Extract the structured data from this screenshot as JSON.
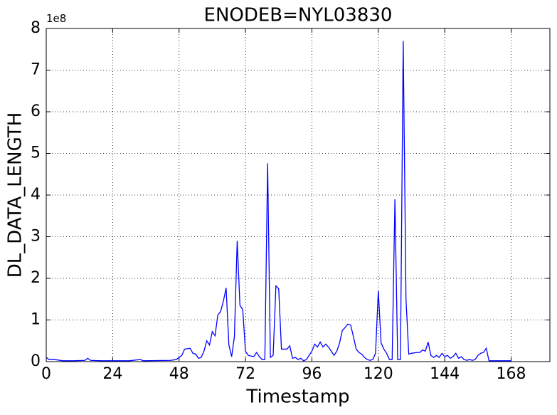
{
  "chart_data": {
    "type": "line",
    "title": "ENODEB=NYL03830",
    "x_label": "Timestamp",
    "y_label": "DL_DATA_LENGTH",
    "y_offset_label": "1e8",
    "xlim": [
      0,
      182
    ],
    "xticks": [
      0,
      24,
      48,
      72,
      96,
      120,
      144,
      168
    ],
    "ylim": [
      0,
      800000000
    ],
    "yticks": [
      {
        "value": 0,
        "label": "0"
      },
      {
        "value": 100000000,
        "label": "1"
      },
      {
        "value": 200000000,
        "label": "2"
      },
      {
        "value": 300000000,
        "label": "3"
      },
      {
        "value": 400000000,
        "label": "4"
      },
      {
        "value": 500000000,
        "label": "5"
      },
      {
        "value": 600000000,
        "label": "6"
      },
      {
        "value": 700000000,
        "label": "7"
      },
      {
        "value": 800000000,
        "label": "8"
      }
    ],
    "grid": true,
    "series": [
      {
        "color": "#0000ff",
        "x": [
          0,
          1,
          3,
          6,
          10,
          14,
          15,
          16,
          20,
          30,
          34,
          35,
          45,
          47,
          48,
          49,
          50,
          52,
          53,
          54,
          55,
          56,
          57,
          58,
          59,
          60,
          61,
          62,
          63,
          64,
          65,
          66,
          67,
          68,
          69,
          70,
          71,
          72,
          73,
          75,
          76,
          77,
          78,
          79,
          80,
          81,
          82,
          83,
          84,
          85,
          86,
          87,
          88,
          89,
          90,
          91,
          92,
          93,
          94,
          95,
          96,
          97,
          98,
          99,
          100,
          101,
          102,
          103,
          104,
          105,
          106,
          107,
          108,
          109,
          110,
          111,
          112,
          113,
          114,
          115,
          116,
          117,
          118,
          119,
          120,
          121,
          122,
          123,
          124,
          125,
          126,
          127,
          128,
          129,
          130,
          131,
          132,
          134,
          135,
          136,
          137,
          138,
          139,
          140,
          141,
          142,
          143,
          144,
          145,
          146,
          147,
          148,
          149,
          150,
          151,
          152,
          153,
          154,
          155,
          156,
          157,
          158,
          159,
          160,
          161,
          163,
          168
        ],
        "values": [
          10000000.0,
          5000000.0,
          5000000.0,
          2000000.0,
          2000000.0,
          3000000.0,
          8000000.0,
          3000000.0,
          2000000.0,
          2000000.0,
          5000000.0,
          2000000.0,
          3000000.0,
          5000000.0,
          10000000.0,
          15000000.0,
          30000000.0,
          32000000.0,
          20000000.0,
          18000000.0,
          8000000.0,
          10000000.0,
          25000000.0,
          50000000.0,
          40000000.0,
          72000000.0,
          62000000.0,
          112000000.0,
          120000000.0,
          145000000.0,
          177000000.0,
          40000000.0,
          12000000.0,
          60000000.0,
          290000000.0,
          135000000.0,
          125000000.0,
          25000000.0,
          15000000.0,
          12000000.0,
          22000000.0,
          12000000.0,
          5000000.0,
          5000000.0,
          476000000.0,
          10000000.0,
          15000000.0,
          182000000.0,
          175000000.0,
          30000000.0,
          30000000.0,
          30000000.0,
          38000000.0,
          8000000.0,
          10000000.0,
          5000000.0,
          8000000.0,
          2000000.0,
          5000000.0,
          15000000.0,
          25000000.0,
          42000000.0,
          35000000.0,
          47000000.0,
          35000000.0,
          42000000.0,
          35000000.0,
          25000000.0,
          15000000.0,
          25000000.0,
          45000000.0,
          75000000.0,
          82000000.0,
          90000000.0,
          88000000.0,
          60000000.0,
          30000000.0,
          22000000.0,
          18000000.0,
          10000000.0,
          5000000.0,
          3000000.0,
          5000000.0,
          20000000.0,
          170000000.0,
          45000000.0,
          30000000.0,
          20000000.0,
          5000000.0,
          5000000.0,
          390000000.0,
          5000000.0,
          5000000.0,
          770000000.0,
          150000000.0,
          18000000.0,
          20000000.0,
          22000000.0,
          22000000.0,
          28000000.0,
          25000000.0,
          47000000.0,
          15000000.0,
          10000000.0,
          15000000.0,
          10000000.0,
          20000000.0,
          12000000.0,
          15000000.0,
          8000000.0,
          12000000.0,
          20000000.0,
          8000000.0,
          12000000.0,
          5000000.0,
          3000000.0,
          5000000.0,
          3000000.0,
          5000000.0,
          15000000.0,
          20000000.0,
          22000000.0,
          32000000.0,
          2000000.0,
          2000000.0,
          2000000.0,
          2000000.0
        ]
      }
    ]
  }
}
